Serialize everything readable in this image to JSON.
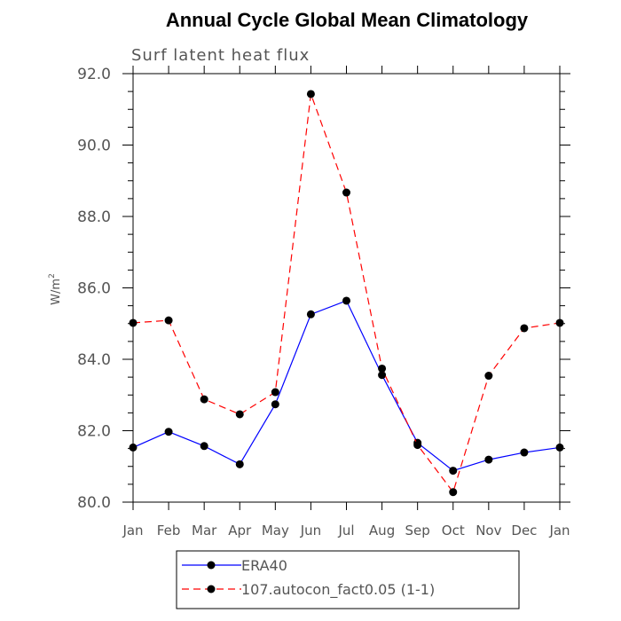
{
  "chart_data": {
    "type": "line",
    "title": "Annual Cycle Global Mean Climatology",
    "subtitle": "Surf latent heat flux",
    "xlabel": "",
    "ylabel": "W/m",
    "ylabel_sup": "2",
    "categories": [
      "Jan",
      "Feb",
      "Mar",
      "Apr",
      "May",
      "Jun",
      "Jul",
      "Aug",
      "Sep",
      "Oct",
      "Nov",
      "Dec",
      "Jan"
    ],
    "ylim": [
      80.0,
      92.0
    ],
    "yticks": [
      "80.0",
      "82.0",
      "84.0",
      "86.0",
      "88.0",
      "90.0",
      "92.0"
    ],
    "series": [
      {
        "name": "ERA40",
        "color": "#0000ff",
        "dash": "solid",
        "values": [
          81.53,
          81.97,
          81.57,
          81.06,
          82.74,
          85.26,
          85.64,
          83.56,
          81.66,
          80.88,
          81.19,
          81.39,
          81.53
        ]
      },
      {
        "name": "107.autocon_fact0.05 (1-1)",
        "color": "#ff0000",
        "dash": "dashed",
        "values": [
          85.02,
          85.09,
          82.88,
          82.46,
          83.08,
          91.43,
          88.67,
          83.74,
          81.6,
          80.28,
          83.54,
          84.87,
          85.02
        ]
      }
    ],
    "legend_position": "bottom"
  }
}
